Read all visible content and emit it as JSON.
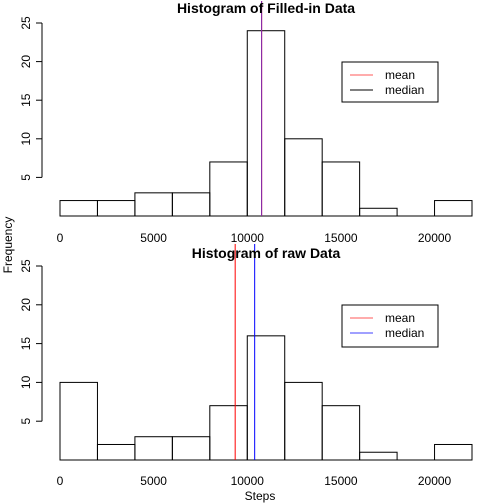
{
  "figure": {
    "ylabel": "Frequency",
    "xlabel": "Steps"
  },
  "chart_data": [
    {
      "type": "bar",
      "title": "Histogram of Filled-in Data",
      "bin_edges": [
        0,
        2000,
        4000,
        6000,
        8000,
        10000,
        12000,
        14000,
        16000,
        18000,
        20000,
        22000
      ],
      "values": [
        2,
        2,
        3,
        3,
        7,
        24,
        10,
        7,
        1,
        0,
        2
      ],
      "xlim": [
        0,
        22000
      ],
      "ylim": [
        0,
        25
      ],
      "x_ticks": [
        "0",
        "5000",
        "10000",
        "15000",
        "20000"
      ],
      "y_ticks": [
        "5",
        "10",
        "15",
        "20",
        "25"
      ],
      "vlines": [
        {
          "name": "mean",
          "value": 10766,
          "color": "#ff0000"
        },
        {
          "name": "median",
          "value": 10766,
          "color": "#7b2ab5"
        }
      ],
      "legend": {
        "position": "top-right",
        "entries": [
          {
            "label": "mean",
            "color": "#ff5a5a"
          },
          {
            "label": "median",
            "color": "#000000"
          }
        ]
      }
    },
    {
      "type": "bar",
      "title": "Histogram of raw Data",
      "bin_edges": [
        0,
        2000,
        4000,
        6000,
        8000,
        10000,
        12000,
        14000,
        16000,
        18000,
        20000,
        22000
      ],
      "values": [
        10,
        2,
        3,
        3,
        7,
        16,
        10,
        7,
        1,
        0,
        2
      ],
      "xlim": [
        0,
        22000
      ],
      "ylim": [
        0,
        25
      ],
      "x_ticks": [
        "0",
        "5000",
        "10000",
        "15000",
        "20000"
      ],
      "y_ticks": [
        "5",
        "10",
        "15",
        "20",
        "25"
      ],
      "vlines": [
        {
          "name": "mean",
          "value": 9354,
          "color": "#ff0000"
        },
        {
          "name": "median",
          "value": 10395,
          "color": "#0000ff"
        }
      ],
      "legend": {
        "position": "top-right",
        "entries": [
          {
            "label": "mean",
            "color": "#ff5a5a"
          },
          {
            "label": "median",
            "color": "#4040ff"
          }
        ]
      }
    }
  ]
}
